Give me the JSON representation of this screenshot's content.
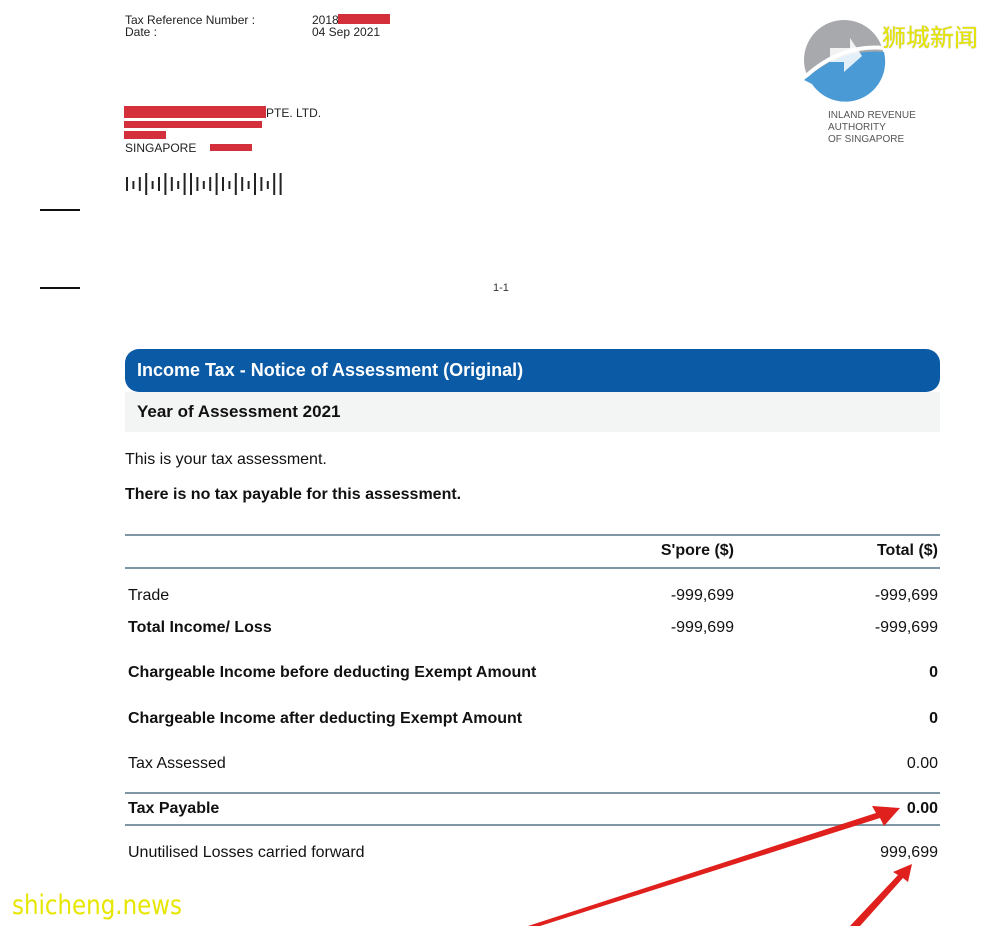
{
  "header": {
    "tax_ref_label": "Tax Reference Number :",
    "tax_ref_value": "2018",
    "date_label": "Date :",
    "date_value": "04 Sep 2021"
  },
  "address": {
    "company_suffix": "PTE. LTD.",
    "city": "SINGAPORE"
  },
  "logo": {
    "org_line1": "INLAND REVENUE",
    "org_line2": "AUTHORITY",
    "org_line3": "OF SINGAPORE",
    "colors": {
      "grey": "#a7a9ac",
      "blue": "#4a9ad6"
    }
  },
  "watermark": {
    "chinese": "狮城新闻",
    "site": "shicheng.news",
    "color": "#e6e600"
  },
  "page_number": "1-1",
  "notice": {
    "title": "Income Tax - Notice of Assessment (Original)",
    "year": "Year of Assessment 2021",
    "intro": "This is your tax assessment.",
    "statement": "There is no tax payable for this assessment.",
    "title_bg": "#0b5aa6"
  },
  "table": {
    "headers": [
      "",
      "S'pore ($)",
      "Total ($)"
    ],
    "rows": [
      {
        "label": "Trade",
        "spore": "-999,699",
        "total": "-999,699",
        "bold": false
      },
      {
        "label": "Total Income/ Loss",
        "spore": "-999,699",
        "total": "-999,699",
        "bold": true
      },
      {
        "label": "Chargeable Income before deducting Exempt Amount",
        "spore": "",
        "total": "0",
        "bold": true
      },
      {
        "label": "Chargeable Income after deducting Exempt Amount",
        "spore": "",
        "total": "0",
        "bold": true
      },
      {
        "label": "Tax Assessed",
        "spore": "",
        "total": "0.00",
        "bold": false
      },
      {
        "label": "Tax Payable",
        "spore": "",
        "total": "0.00",
        "bold": true
      },
      {
        "label": "Unutilised Losses carried forward",
        "spore": "",
        "total": "999,699",
        "bold": false
      }
    ]
  },
  "annotation": {
    "arrow_color": "#e0201c"
  }
}
